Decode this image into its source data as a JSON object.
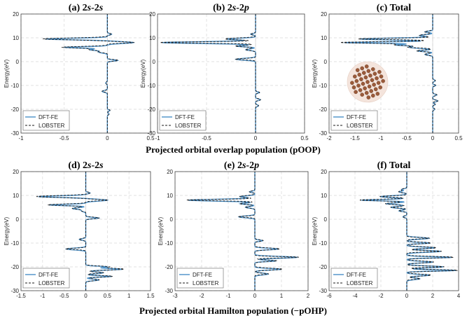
{
  "figure": {
    "row_labels": [
      "Projected orbital overlap population (pOOP)",
      "Projected orbital Hamilton population (−pOHP)"
    ],
    "legend": [
      "DFT-FE",
      "LOBSTER"
    ],
    "ylabel": "Energy(eV)",
    "colors": {
      "dftfe": "#4a90c8",
      "lobster": "#1a1a1a"
    },
    "inset_icon": "molecule-cluster-icon"
  },
  "chart_data": [
    {
      "type": "line",
      "panel": "(a) 2s-2s",
      "title_prefix": "(a) ",
      "title_parts": [
        "2",
        "s",
        "-2",
        "s"
      ],
      "xlim": [
        -1,
        0.5
      ],
      "ylim": [
        -30,
        20
      ],
      "xticks": [
        "-1",
        "-0.5",
        "0",
        "0.5"
      ],
      "yticks": [
        "-30",
        "-20",
        "-10",
        "0",
        "10",
        "20"
      ],
      "series_names": [
        "DFT-FE",
        "LOBSTER"
      ],
      "peaks": [
        [
          11.5,
          0.05
        ],
        [
          9.5,
          -0.72
        ],
        [
          8.0,
          0.3
        ],
        [
          6.0,
          -0.5
        ],
        [
          5.0,
          -0.2
        ],
        [
          4.0,
          -0.1
        ],
        [
          0.5,
          0.12
        ],
        [
          -9.0,
          -0.02
        ],
        [
          -12.5,
          -0.06
        ],
        [
          -20.5,
          0.03
        ],
        [
          -22.0,
          0.02
        ]
      ]
    },
    {
      "type": "line",
      "panel": "(b) 2s-2p",
      "title_prefix": "(b) ",
      "title_parts": [
        "2",
        "s",
        "-2",
        "p"
      ],
      "xlim": [
        -1,
        0.5
      ],
      "ylim": [
        -30,
        20
      ],
      "xticks": [
        "-1",
        "-0.5",
        "0",
        "0.5"
      ],
      "yticks": [
        "-30",
        "-20",
        "-10",
        "0",
        "10",
        "20"
      ],
      "series_names": [
        "DFT-FE",
        "LOBSTER"
      ],
      "peaks": [
        [
          11.5,
          -0.05
        ],
        [
          9.5,
          -0.3
        ],
        [
          8.0,
          -0.95
        ],
        [
          6.5,
          -0.2
        ],
        [
          5.0,
          -0.1
        ],
        [
          1.0,
          -0.2
        ],
        [
          -13.0,
          0.04
        ],
        [
          -16.0,
          0.05
        ],
        [
          -18.5,
          0.03
        ]
      ]
    },
    {
      "type": "line",
      "panel": "(c) Total",
      "title_prefix": "(c) ",
      "title_parts": [
        "Total"
      ],
      "xlim": [
        -2,
        0.5
      ],
      "ylim": [
        -30,
        20
      ],
      "xticks": [
        "-2",
        "-1.5",
        "-1",
        "-0.5",
        "0",
        "0.5"
      ],
      "yticks": [
        "-30",
        "-20",
        "-10",
        "0",
        "10",
        "20"
      ],
      "series_names": [
        "DFT-FE",
        "LOBSTER"
      ],
      "peaks": [
        [
          12.5,
          -0.15
        ],
        [
          11.0,
          -0.25
        ],
        [
          9.5,
          -1.4
        ],
        [
          8.0,
          -1.7
        ],
        [
          7.0,
          -0.7
        ],
        [
          6.0,
          -0.45
        ],
        [
          4.5,
          -0.3
        ],
        [
          3.0,
          -0.15
        ],
        [
          -8.0,
          0.05
        ],
        [
          -10.0,
          0.06
        ],
        [
          -14.0,
          0.08
        ],
        [
          -16.5,
          0.1
        ],
        [
          -18.0,
          0.05
        ],
        [
          -20.0,
          0.04
        ]
      ]
    },
    {
      "type": "line",
      "panel": "(d) 2s-2s",
      "title_prefix": "(d) ",
      "title_parts": [
        "2",
        "s",
        "-2",
        "s"
      ],
      "xlim": [
        -1.5,
        1.5
      ],
      "ylim": [
        -30,
        20
      ],
      "xticks": [
        "-1.5",
        "-1",
        "-0.5",
        "0",
        "0.5",
        "1",
        "1.5"
      ],
      "yticks": [
        "-30",
        "-20",
        "-10",
        "0",
        "10",
        "20"
      ],
      "series_names": [
        "DFT-FE",
        "LOBSTER"
      ],
      "peaks": [
        [
          11.0,
          0.1
        ],
        [
          9.5,
          -1.1
        ],
        [
          8.0,
          0.5
        ],
        [
          6.0,
          -0.85
        ],
        [
          4.5,
          -0.3
        ],
        [
          3.5,
          -0.1
        ],
        [
          0.5,
          0.3
        ],
        [
          -8.5,
          -0.15
        ],
        [
          -12.5,
          -0.45
        ],
        [
          -20.0,
          0.5
        ],
        [
          -21.0,
          0.85
        ],
        [
          -22.5,
          0.4
        ],
        [
          -24.0,
          0.6
        ],
        [
          -25.5,
          0.3
        ]
      ]
    },
    {
      "type": "line",
      "panel": "(e) 2s-2p",
      "title_prefix": "(e) ",
      "title_parts": [
        "2",
        "s",
        "-2",
        "p"
      ],
      "xlim": [
        -3,
        2
      ],
      "ylim": [
        -30,
        20
      ],
      "xticks": [
        "-3",
        "-2",
        "-1",
        "0",
        "1",
        "2"
      ],
      "yticks": [
        "-30",
        "-20",
        "-10",
        "0",
        "10",
        "20"
      ],
      "series_names": [
        "DFT-FE",
        "LOBSTER"
      ],
      "peaks": [
        [
          11.5,
          -0.2
        ],
        [
          9.5,
          -0.55
        ],
        [
          8.0,
          -2.5
        ],
        [
          6.5,
          -0.55
        ],
        [
          5.0,
          -0.35
        ],
        [
          1.0,
          -0.6
        ],
        [
          -9.0,
          0.3
        ],
        [
          -12.5,
          0.9
        ],
        [
          -16.0,
          1.6
        ],
        [
          -17.5,
          0.8
        ],
        [
          -21.0,
          1.0
        ],
        [
          -23.0,
          0.5
        ]
      ]
    },
    {
      "type": "line",
      "panel": "(f) Total",
      "title_prefix": "(f) ",
      "title_parts": [
        "Total"
      ],
      "xlim": [
        -6,
        4
      ],
      "ylim": [
        -30,
        20
      ],
      "xticks": [
        "-6",
        "-4",
        "-2",
        "0",
        "2",
        "4"
      ],
      "yticks": [
        "-30",
        "-20",
        "-10",
        "0",
        "10",
        "20"
      ],
      "series_names": [
        "DFT-FE",
        "LOBSTER"
      ],
      "peaks": [
        [
          12.5,
          -0.4
        ],
        [
          11.5,
          -0.6
        ],
        [
          9.5,
          -2.0
        ],
        [
          8.0,
          -3.5
        ],
        [
          6.5,
          -1.6
        ],
        [
          5.0,
          -1.2
        ],
        [
          3.5,
          -0.6
        ],
        [
          1.0,
          -0.3
        ],
        [
          -8.0,
          1.7
        ],
        [
          -10.0,
          1.8
        ],
        [
          -12.0,
          2.2
        ],
        [
          -13.5,
          2.6
        ],
        [
          -16.0,
          3.5
        ],
        [
          -18.0,
          2.0
        ],
        [
          -20.0,
          2.8
        ],
        [
          -21.5,
          3.8
        ],
        [
          -23.5,
          1.8
        ],
        [
          -25.0,
          1.0
        ]
      ]
    }
  ]
}
